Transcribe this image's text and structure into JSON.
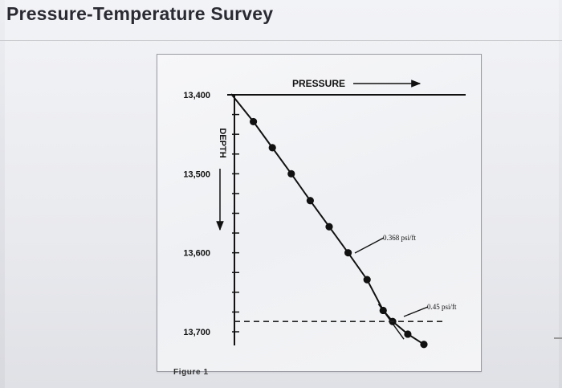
{
  "page": {
    "title": "Pressure-Temperature Survey",
    "caption": "Figure 1"
  },
  "chart_data": {
    "type": "line",
    "title": "",
    "xlabel": "PRESSURE",
    "ylabel": "DEPTH",
    "y_ticks": [
      "13,400",
      "13,500",
      "13,600",
      "13,700"
    ],
    "y_tick_values": [
      13400,
      13500,
      13600,
      13700
    ],
    "ylim": [
      13400,
      13720
    ],
    "y_inverted": true,
    "x_axis_position": "top",
    "grid": false,
    "series": [
      {
        "points": [
          {
            "p": 1.0,
            "depth": 13434
          },
          {
            "p": 2.0,
            "depth": 13467
          },
          {
            "p": 3.0,
            "depth": 13500
          },
          {
            "p": 4.0,
            "depth": 13534
          },
          {
            "p": 5.0,
            "depth": 13567
          },
          {
            "p": 6.0,
            "depth": 13600
          },
          {
            "p": 7.0,
            "depth": 13634
          },
          {
            "p": 7.85,
            "depth": 13673
          },
          {
            "p": 8.35,
            "depth": 13687
          },
          {
            "p": 9.15,
            "depth": 13703
          },
          {
            "p": 10.0,
            "depth": 13716
          }
        ]
      }
    ],
    "annotations": [
      {
        "text": "0.368 psi/ft"
      },
      {
        "text": "0.45 psi/ft"
      }
    ],
    "reference_line": {
      "depth": 13687,
      "style": "dashed"
    },
    "colors": {
      "line": "#111111",
      "points": "#111111",
      "axis": "#111111"
    }
  }
}
